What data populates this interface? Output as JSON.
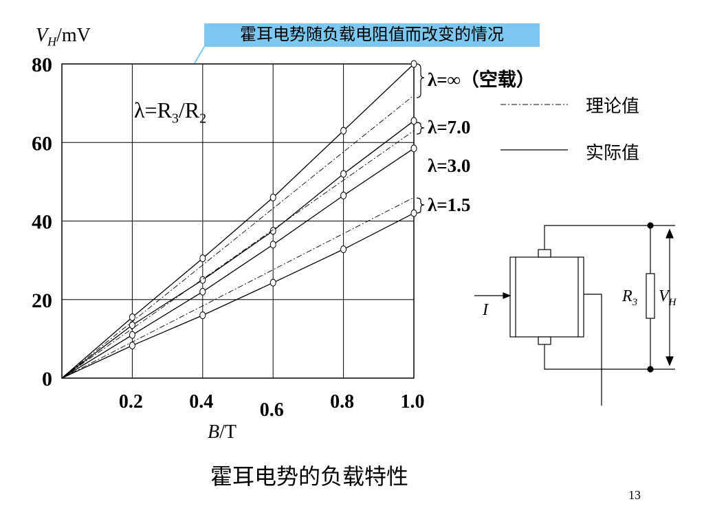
{
  "slide": {
    "title": "霍耳电势随负载电阻值而改变的情况",
    "caption": "霍耳电势的负载特性",
    "page_number": "13"
  },
  "chart_data": {
    "type": "line",
    "title": "霍耳电势随负载电阻值而改变的情况",
    "xlabel_var": "B",
    "xlabel_unit": "/T",
    "ylabel_var": "V",
    "ylabel_sub": "H",
    "ylabel_unit": "/mV",
    "xlim": [
      0,
      1.0
    ],
    "ylim": [
      0,
      80
    ],
    "x_ticks": [
      "0.2",
      "0.4",
      "0.6",
      "0.8",
      "1.0"
    ],
    "y_ticks": [
      "0",
      "20",
      "40",
      "60",
      "80"
    ],
    "grid": true,
    "formula": "λ=R3/R2",
    "lambda_labels": [
      "λ=∞（空载）",
      "λ=7.0",
      "λ=3.0",
      "λ=1.5"
    ],
    "legend": {
      "theoretical": "理论值",
      "actual": "实际值"
    },
    "series": [
      {
        "name": "λ=∞ 实际值",
        "style": "solid",
        "x": [
          0,
          0.2,
          0.4,
          0.6,
          0.8,
          1.0
        ],
        "y": [
          0,
          15.5,
          30.5,
          46,
          63,
          80
        ],
        "markers": true
      },
      {
        "name": "λ=7.0 实际值",
        "style": "solid",
        "x": [
          0,
          0.2,
          0.4,
          0.6,
          0.8,
          1.0
        ],
        "y": [
          0,
          13.5,
          25,
          37.5,
          52,
          65.5
        ],
        "markers": true
      },
      {
        "name": "λ=3.0 实际值",
        "style": "solid",
        "x": [
          0,
          0.2,
          0.4,
          0.6,
          0.8,
          1.0
        ],
        "y": [
          0,
          11,
          22,
          34,
          46.5,
          58.5
        ],
        "markers": true
      },
      {
        "name": "λ=1.5 实际值",
        "style": "solid",
        "x": [
          0,
          0.2,
          0.4,
          0.6,
          0.8,
          1.0
        ],
        "y": [
          0,
          8.3,
          16,
          24.3,
          32.8,
          42
        ],
        "markers": true
      },
      {
        "name": "λ=∞ 理论值",
        "style": "dashdot",
        "x": [
          0,
          1.0
        ],
        "y": [
          0,
          72
        ]
      },
      {
        "name": "λ=7.0 理论值",
        "style": "dashdot",
        "x": [
          0,
          1.0
        ],
        "y": [
          0,
          63
        ]
      },
      {
        "name": "λ=3.0 理论值",
        "style": "dashdot",
        "x": [
          0,
          1.0
        ],
        "y": [
          0,
          46
        ]
      }
    ]
  },
  "circuit": {
    "current_label": "I",
    "resistor_label": "R",
    "resistor_sub": "3",
    "voltage_label": "V",
    "voltage_sub": "H"
  }
}
